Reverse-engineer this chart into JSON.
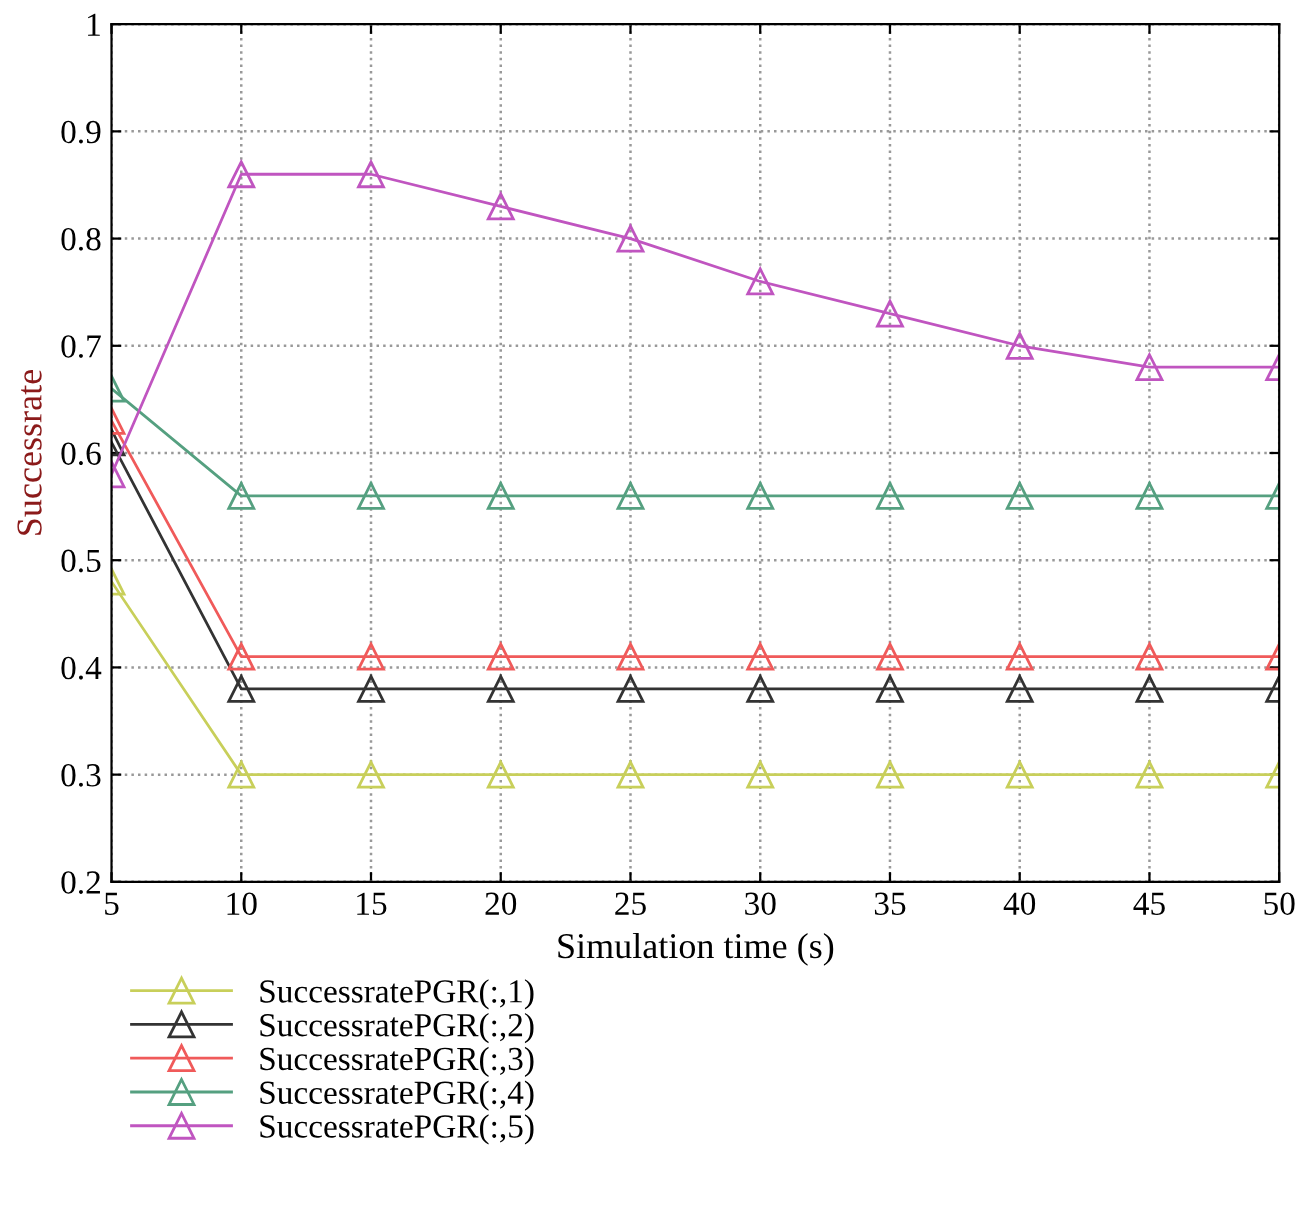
{
  "chart_data": {
    "type": "line",
    "xlabel": "Simulation time (s)",
    "ylabel": "Successrate",
    "x": [
      5,
      10,
      15,
      20,
      25,
      30,
      35,
      40,
      45,
      50
    ],
    "xlim": [
      5,
      50
    ],
    "xticks": [
      5,
      10,
      15,
      20,
      25,
      30,
      35,
      40,
      45,
      50
    ],
    "ylim": [
      0.2,
      1
    ],
    "yticks": [
      0.2,
      0.3,
      0.4,
      0.5,
      0.6,
      0.7,
      0.8,
      0.9,
      1
    ],
    "grid": true,
    "legend": "bottom",
    "marker": "triangle",
    "line_style": "solid",
    "series": [
      {
        "name": "SuccessratePGR(:,1)",
        "color": "#c8cf5a",
        "values": [
          0.48,
          0.3,
          0.3,
          0.3,
          0.3,
          0.3,
          0.3,
          0.3,
          0.3,
          0.3
        ]
      },
      {
        "name": "SuccessratePGR(:,2)",
        "color": "#333333",
        "values": [
          0.61,
          0.38,
          0.38,
          0.38,
          0.38,
          0.38,
          0.38,
          0.38,
          0.38,
          0.38
        ]
      },
      {
        "name": "SuccessratePGR(:,3)",
        "color": "#f05a5a",
        "values": [
          0.63,
          0.41,
          0.41,
          0.41,
          0.41,
          0.41,
          0.41,
          0.41,
          0.41,
          0.41
        ]
      },
      {
        "name": "SuccessratePGR(:,4)",
        "color": "#55a080",
        "values": [
          0.66,
          0.56,
          0.56,
          0.56,
          0.56,
          0.56,
          0.56,
          0.56,
          0.56,
          0.56
        ]
      },
      {
        "name": "SuccessratePGR(:,5)",
        "color": "#c055c0",
        "values": [
          0.58,
          0.86,
          0.86,
          0.83,
          0.8,
          0.76,
          0.73,
          0.7,
          0.68,
          0.68
        ]
      }
    ]
  }
}
